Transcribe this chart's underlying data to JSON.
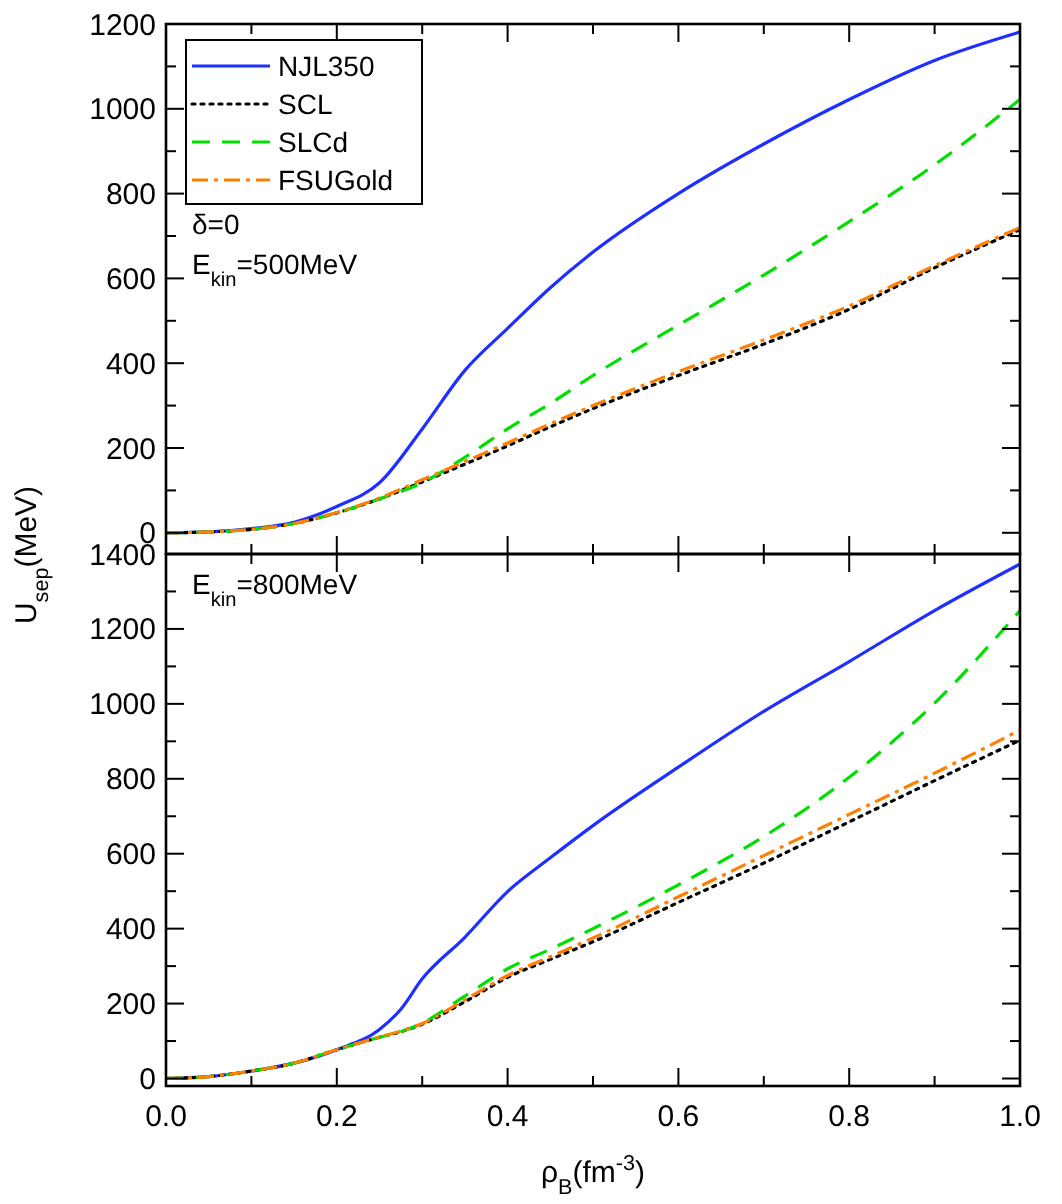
{
  "chart_data": [
    {
      "type": "line",
      "x": [
        0,
        0.05,
        0.1,
        0.15,
        0.2,
        0.25,
        0.3,
        0.35,
        0.4,
        0.45,
        0.5,
        0.6,
        0.7,
        0.8,
        0.9,
        1.0
      ],
      "series": [
        {
          "name": "NJL350",
          "color": "#1f2fff",
          "line_style": "solid",
          "values": [
            0,
            2,
            10,
            25,
            62,
            118,
            245,
            383,
            482,
            578,
            662,
            800,
            917,
            1022,
            1114,
            1181
          ]
        },
        {
          "name": "SCL",
          "color": "#000000",
          "line_style": "dotted",
          "values": [
            0,
            2,
            8,
            22,
            47,
            80,
            120,
            162,
            205,
            250,
            293,
            371,
            445,
            527,
            625,
            715
          ]
        },
        {
          "name": "SLCd",
          "color": "#00e000",
          "line_style": "dashed",
          "values": [
            0,
            2,
            8,
            22,
            47,
            80,
            118,
            178,
            245,
            305,
            371,
            490,
            608,
            734,
            868,
            1022
          ]
        },
        {
          "name": "FSUGold",
          "color": "#ff8000",
          "line_style": "dashdot",
          "values": [
            0,
            2,
            8,
            22,
            48,
            82,
            125,
            168,
            212,
            257,
            300,
            380,
            455,
            535,
            630,
            720
          ]
        }
      ],
      "xlim": [
        0,
        1.0
      ],
      "xticks": [
        {
          "value": 0,
          "label": null
        },
        {
          "value": 0.1,
          "label": null
        },
        {
          "value": 0.2,
          "label": null
        },
        {
          "value": 0.3,
          "label": null
        },
        {
          "value": 0.4,
          "label": null
        },
        {
          "value": 0.5,
          "label": null
        },
        {
          "value": 0.6,
          "label": null
        },
        {
          "value": 0.7,
          "label": null
        },
        {
          "value": 0.8,
          "label": null
        },
        {
          "value": 0.9,
          "label": null
        },
        {
          "value": 1.0,
          "label": null
        }
      ],
      "ylim": [
        -50,
        1200
      ],
      "yticks": [
        0,
        {
          "value": 100,
          "label": null
        },
        200,
        {
          "value": 300,
          "label": null
        },
        400,
        {
          "value": 500,
          "label": null
        },
        600,
        {
          "value": 700,
          "label": null
        },
        800,
        {
          "value": 900,
          "label": null
        },
        1000,
        {
          "value": 1100,
          "label": null
        },
        1200
      ],
      "tick_labels": "y",
      "legend": "top left",
      "grid": false,
      "annotations": [
        "δ=0",
        "E$_{kin}$=500MeV"
      ]
    },
    {
      "type": "line",
      "x": [
        0,
        0.05,
        0.1,
        0.15,
        0.2,
        0.25,
        0.275,
        0.3,
        0.35,
        0.4,
        0.45,
        0.5,
        0.6,
        0.7,
        0.8,
        0.9,
        1.0
      ],
      "series": [
        {
          "color": "#1f2fff",
          "line_style": "solid",
          "values": [
            0,
            5,
            20,
            41,
            77,
            131,
            185,
            266,
            377,
            499,
            589,
            675,
            831,
            980,
            1113,
            1249,
            1373
          ]
        },
        {
          "color": "#000000",
          "line_style": "dotted",
          "values": [
            0,
            5,
            20,
            41,
            77,
            110,
            125,
            145,
            205,
            270,
            318,
            365,
            470,
            575,
            685,
            795,
            903
          ]
        },
        {
          "color": "#00e000",
          "line_style": "dashed",
          "values": [
            0,
            5,
            20,
            41,
            77,
            110,
            125,
            148,
            220,
            293,
            345,
            400,
            517,
            646,
            804,
            1002,
            1249
          ]
        },
        {
          "color": "#ff8000",
          "line_style": "dashdot",
          "values": [
            0,
            5,
            20,
            41,
            77,
            111,
            127,
            147,
            210,
            275,
            325,
            375,
            485,
            595,
            705,
            815,
            930
          ]
        }
      ],
      "xlim": [
        0,
        1.0
      ],
      "xticks": [
        {
          "value": 0,
          "label": "0.0"
        },
        {
          "value": 0.1,
          "label": null
        },
        0.2,
        {
          "value": 0.3,
          "label": null
        },
        0.4,
        {
          "value": 0.5,
          "label": null
        },
        0.6,
        {
          "value": 0.7,
          "label": null
        },
        0.8,
        {
          "value": 0.9,
          "label": null
        },
        {
          "value": 1.0,
          "label": "1.0"
        }
      ],
      "ylim": [
        -20,
        1400
      ],
      "yticks": [
        0,
        {
          "value": 100,
          "label": null
        },
        200,
        {
          "value": 300,
          "label": null
        },
        400,
        {
          "value": 500,
          "label": null
        },
        600,
        {
          "value": 700,
          "label": null
        },
        800,
        {
          "value": 900,
          "label": null
        },
        1000,
        {
          "value": 1100,
          "label": null
        },
        1200,
        {
          "value": 1300,
          "label": null
        },
        1400
      ],
      "xlabel": "ρ$_{B}$(fm$^{-3}$)",
      "ylabel": "U$_{sep}$(MeV)",
      "legend": false,
      "grid": false,
      "annotations": [
        "E$_{kin}$=800MeV"
      ]
    }
  ]
}
